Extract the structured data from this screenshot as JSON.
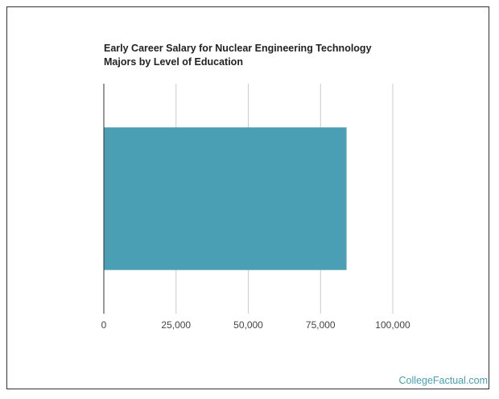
{
  "chart_data": {
    "type": "bar",
    "orientation": "horizontal",
    "title": "Early Career Salary for Nuclear Engineering Technology Majors by Level of Education",
    "categories": [
      null
    ],
    "values": [
      84000
    ],
    "color": "#4a9fb5",
    "xlim": [
      0,
      100000
    ],
    "xticks": [
      0,
      {
        "value": 25000,
        "label": "25,000"
      },
      {
        "value": 50000,
        "label": "50,000"
      },
      {
        "value": 75000,
        "label": "75,000"
      },
      {
        "value": 100000,
        "label": "100,000"
      }
    ],
    "grid": true,
    "source": "CollegeFactual.com"
  }
}
